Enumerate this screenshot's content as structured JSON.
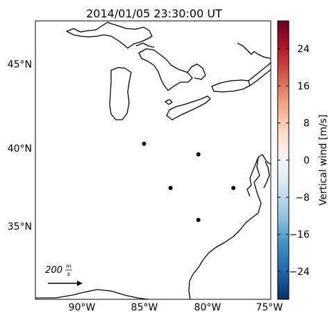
{
  "title": "2014/01/05 23:30:00 UT",
  "lat_labels": [
    "45°N",
    "40°N",
    "35°N"
  ],
  "lon_labels": [
    "90°W",
    "85°W",
    "80°W",
    "75°W"
  ],
  "map_extent": {
    "lon_min": -94,
    "lon_max": -74.5,
    "lat_min": 30.5,
    "lat_max": 47.5
  },
  "stations": [
    {
      "lon": -85.0,
      "lat": 40.0
    },
    {
      "lon": -80.5,
      "lat": 39.35
    },
    {
      "lon": -82.8,
      "lat": 37.3
    },
    {
      "lon": -77.6,
      "lat": 37.3
    },
    {
      "lon": -80.5,
      "lat": 35.35
    }
  ],
  "scale_arrow": {
    "value": "200",
    "unit_num": "m",
    "unit_den": "s"
  },
  "colorbar": {
    "label": "Vertical wind [m/s]",
    "range": [
      -30,
      30
    ],
    "ticks": [
      "24",
      "16",
      "8",
      "0",
      "−8",
      "−16",
      "−24"
    ],
    "colors": [
      "#67001f",
      "#b2182b",
      "#d6604d",
      "#f4a582",
      "#fddbc7",
      "#f7f7f7",
      "#d1e5f0",
      "#92c5de",
      "#4393c3",
      "#2166ac",
      "#053061"
    ]
  }
}
